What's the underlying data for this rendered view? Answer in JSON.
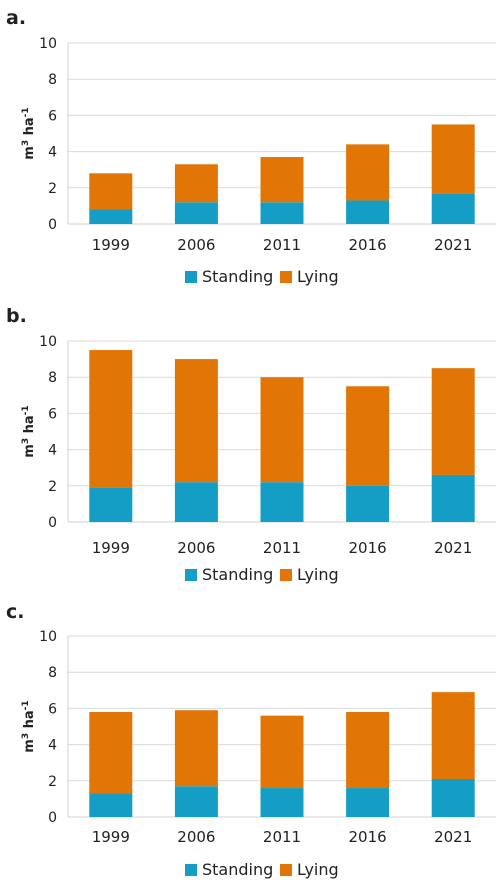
{
  "colors": {
    "standing": "#159ec5",
    "lying": "#e17607"
  },
  "chart_data": [
    {
      "type": "bar",
      "stacked": true,
      "panel": "a.",
      "categories": [
        "1999",
        "2006",
        "2011",
        "2016",
        "2021"
      ],
      "series": [
        {
          "name": "Standing",
          "values": [
            0.8,
            1.2,
            1.2,
            1.3,
            1.7
          ]
        },
        {
          "name": "Lying",
          "values": [
            2.0,
            2.1,
            2.5,
            3.1,
            3.8
          ]
        }
      ],
      "ylim": [
        0,
        10
      ],
      "yticks": [
        "0",
        "2",
        "4",
        "6",
        "8",
        "10"
      ],
      "ylabel": {
        "base": "m",
        "sup1": "3",
        "mid": " ha",
        "sup2": "-1"
      },
      "grid": "horizontal",
      "legend": "bottom"
    },
    {
      "type": "bar",
      "stacked": true,
      "panel": "b.",
      "categories": [
        "1999",
        "2006",
        "2011",
        "2016",
        "2021"
      ],
      "series": [
        {
          "name": "Standing",
          "values": [
            1.9,
            2.2,
            2.2,
            2.0,
            2.6
          ]
        },
        {
          "name": "Lying",
          "values": [
            7.6,
            6.8,
            5.8,
            5.5,
            5.9
          ]
        }
      ],
      "ylim": [
        0,
        10
      ],
      "yticks": [
        "0",
        "2",
        "4",
        "6",
        "8",
        "10"
      ],
      "ylabel": {
        "base": "m",
        "sup1": "3",
        "mid": " ha",
        "sup2": "-1"
      },
      "grid": "horizontal",
      "legend": "bottom"
    },
    {
      "type": "bar",
      "stacked": true,
      "panel": "c.",
      "categories": [
        "1999",
        "2006",
        "2011",
        "2016",
        "2021"
      ],
      "series": [
        {
          "name": "Standing",
          "values": [
            1.3,
            1.7,
            1.6,
            1.6,
            2.1
          ]
        },
        {
          "name": "Lying",
          "values": [
            4.5,
            4.2,
            4.0,
            4.2,
            4.8
          ]
        }
      ],
      "ylim": [
        0,
        10
      ],
      "yticks": [
        "0",
        "2",
        "4",
        "6",
        "8",
        "10"
      ],
      "ylabel": {
        "base": "m",
        "sup1": "3",
        "mid": " ha",
        "sup2": "-1"
      },
      "grid": "horizontal",
      "legend": "bottom"
    }
  ]
}
